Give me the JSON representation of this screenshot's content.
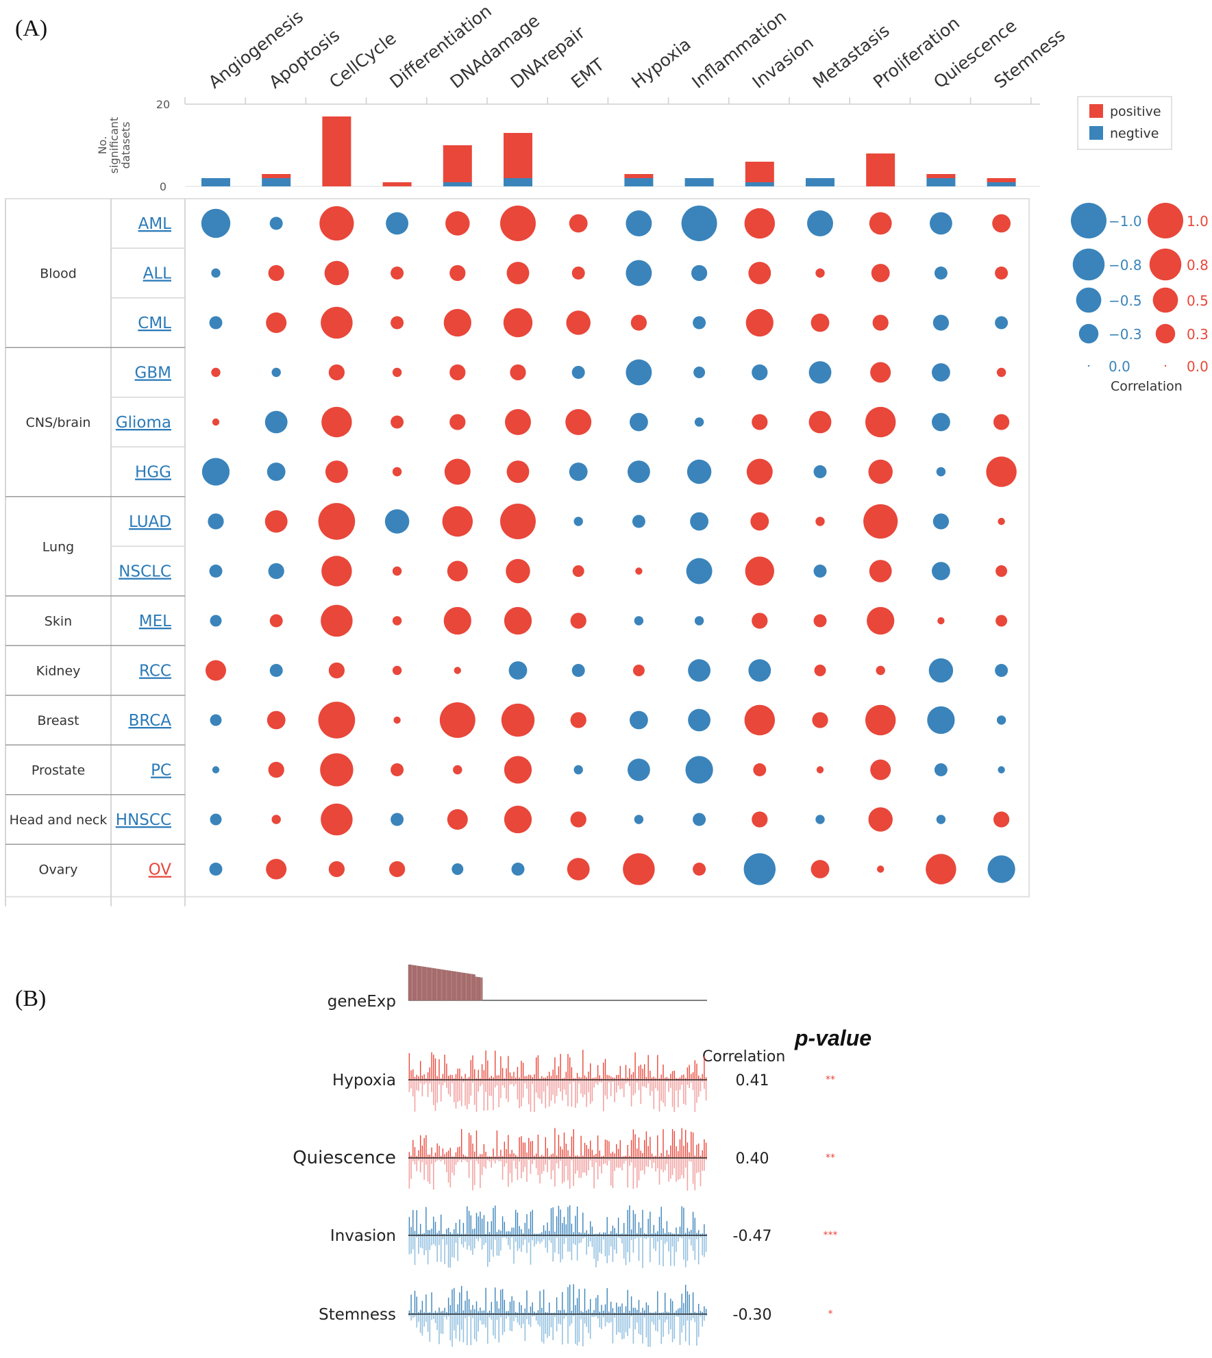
{
  "panel_a_label": "(A)",
  "panel_b_label": "(B)",
  "colors": {
    "positive": "#e8473a",
    "negative": "#3a84bb",
    "pos_light": "#f2a3a3",
    "neg_light": "#94c1e0",
    "gene": "#a86e6e"
  },
  "chart_data": [
    {
      "type": "bar",
      "panel": "A-top",
      "ylabel": "No. significant datasets",
      "ylim": [
        0,
        20
      ],
      "yticks": [
        "0",
        "20"
      ],
      "categories": [
        "Angiogenesis",
        "Apoptosis",
        "CellCycle",
        "Differentiation",
        "DNAdamage",
        "DNArepair",
        "EMT",
        "Hypoxia",
        "Inflammation",
        "Invasion",
        "Metastasis",
        "Proliferation",
        "Quiescence",
        "Stemness"
      ],
      "series": [
        {
          "name": "negtive",
          "values": [
            2,
            2,
            0,
            0,
            1,
            2,
            0,
            2,
            2,
            1,
            2,
            0,
            2,
            1
          ]
        },
        {
          "name": "positive",
          "values": [
            0,
            1,
            17,
            1,
            9,
            11,
            0,
            1,
            0,
            5,
            0,
            8,
            1,
            1
          ]
        }
      ],
      "legend": [
        {
          "label": "positive"
        },
        {
          "label": "negtive"
        }
      ]
    },
    {
      "type": "bubble",
      "panel": "A-main",
      "functions": [
        "Angiogenesis",
        "Apoptosis",
        "CellCycle",
        "Differentiation",
        "DNAdamage",
        "DNArepair",
        "EMT",
        "Hypoxia",
        "Inflammation",
        "Invasion",
        "Metastasis",
        "Proliferation",
        "Quiescence",
        "Stemness"
      ],
      "tissues": [
        {
          "name": "Blood",
          "types": [
            "AML",
            "ALL",
            "CML"
          ]
        },
        {
          "name": "CNS/brain",
          "types": [
            "GBM",
            "Glioma",
            "HGG"
          ]
        },
        {
          "name": "Lung",
          "types": [
            "LUAD",
            "NSCLC"
          ]
        },
        {
          "name": "Skin",
          "types": [
            "MEL"
          ]
        },
        {
          "name": "Kidney",
          "types": [
            "RCC"
          ]
        },
        {
          "name": "Breast",
          "types": [
            "BRCA"
          ]
        },
        {
          "name": "Prostate",
          "types": [
            "PC"
          ]
        },
        {
          "name": "Head and neck",
          "types": [
            "HNSCC"
          ]
        },
        {
          "name": "Ovary",
          "types": [
            "OV"
          ]
        }
      ],
      "cancer_types": [
        "AML",
        "ALL",
        "CML",
        "GBM",
        "Glioma",
        "HGG",
        "LUAD",
        "NSCLC",
        "MEL",
        "RCC",
        "BRCA",
        "PC",
        "HNSCC",
        "OV"
      ],
      "highlight_type": "OV",
      "values": [
        [
          -0.5,
          -0.1,
          0.7,
          -0.3,
          0.35,
          0.75,
          0.2,
          -0.4,
          -0.75,
          0.55,
          -0.4,
          0.3,
          -0.3,
          0.2
        ],
        [
          -0.05,
          0.15,
          0.35,
          0.1,
          0.15,
          0.3,
          0.1,
          -0.4,
          -0.15,
          0.3,
          0.05,
          0.2,
          -0.1,
          0.1
        ],
        [
          -0.1,
          0.25,
          0.6,
          0.1,
          0.45,
          0.5,
          0.35,
          0.15,
          -0.1,
          0.45,
          0.2,
          0.15,
          -0.15,
          -0.1
        ],
        [
          0.05,
          -0.05,
          0.15,
          0.05,
          0.15,
          0.15,
          -0.1,
          -0.4,
          -0.08,
          -0.15,
          -0.3,
          0.25,
          -0.2,
          0.05
        ],
        [
          0.03,
          -0.3,
          0.55,
          0.1,
          0.15,
          0.4,
          0.4,
          -0.2,
          -0.05,
          0.15,
          0.3,
          0.55,
          -0.2,
          0.15
        ],
        [
          -0.45,
          -0.2,
          0.3,
          0.05,
          0.4,
          0.3,
          -0.2,
          -0.3,
          -0.35,
          0.4,
          -0.1,
          0.35,
          -0.05,
          0.55
        ],
        [
          -0.15,
          0.3,
          0.8,
          -0.35,
          0.55,
          0.75,
          -0.05,
          -0.1,
          -0.2,
          0.2,
          0.05,
          0.7,
          -0.15,
          0.03
        ],
        [
          -0.1,
          -0.15,
          0.55,
          0.05,
          0.25,
          0.35,
          0.08,
          0.03,
          -0.4,
          0.5,
          -0.1,
          0.3,
          -0.2,
          0.08
        ],
        [
          -0.08,
          0.1,
          0.6,
          0.05,
          0.45,
          0.45,
          0.15,
          -0.05,
          -0.05,
          0.15,
          0.1,
          0.45,
          0.03,
          0.08
        ],
        [
          0.25,
          -0.1,
          0.15,
          0.05,
          0.03,
          -0.2,
          -0.1,
          0.08,
          -0.3,
          -0.3,
          0.08,
          0.05,
          -0.35,
          -0.1
        ],
        [
          -0.08,
          0.2,
          0.8,
          0.03,
          0.75,
          0.65,
          0.15,
          -0.2,
          -0.3,
          0.55,
          0.15,
          0.55,
          -0.45,
          -0.05
        ],
        [
          -0.03,
          0.15,
          0.65,
          0.1,
          0.05,
          0.45,
          -0.05,
          -0.3,
          -0.45,
          0.1,
          0.03,
          0.25,
          -0.1,
          -0.03
        ],
        [
          -0.08,
          0.05,
          0.6,
          -0.1,
          0.25,
          0.45,
          0.15,
          -0.05,
          -0.1,
          0.15,
          -0.05,
          0.35,
          -0.05,
          0.15
        ],
        [
          -0.1,
          0.25,
          0.15,
          0.15,
          -0.08,
          -0.1,
          0.3,
          0.6,
          0.1,
          -0.6,
          0.2,
          0.03,
          0.55,
          -0.45
        ]
      ],
      "size_legend": {
        "title": "Correlation",
        "negative": [
          "−1.0",
          "−0.8",
          "−0.5",
          "−0.3",
          "0.0"
        ],
        "positive": [
          "1.0",
          "0.8",
          "0.5",
          "0.3",
          "0.0"
        ],
        "levels": [
          1.0,
          0.8,
          0.5,
          0.3,
          0.0
        ]
      }
    },
    {
      "type": "line",
      "panel": "B",
      "gene_label": "geneExp",
      "correlation_header": "Correlation",
      "pvalue_header": "p-value",
      "rows": [
        {
          "name": "Hypoxia",
          "correlation": "0.41",
          "stars": "**",
          "sign": "positive",
          "label_highlight": false
        },
        {
          "name": "Quiescence",
          "correlation": "0.40",
          "stars": "**",
          "sign": "positive",
          "label_highlight": true
        },
        {
          "name": "Invasion",
          "correlation": "-0.47",
          "stars": "***",
          "sign": "negative",
          "label_highlight": false
        },
        {
          "name": "Stemness",
          "correlation": "-0.30",
          "stars": "*",
          "sign": "negative",
          "label_highlight": false
        }
      ]
    }
  ]
}
